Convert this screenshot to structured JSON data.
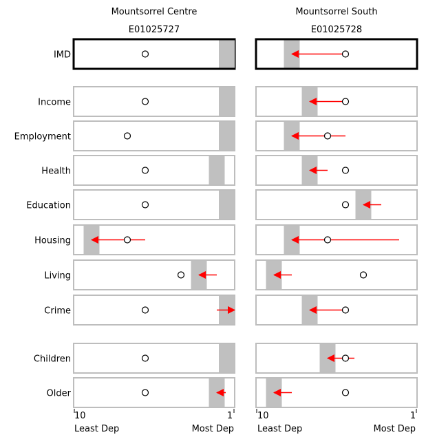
{
  "chart_data": {
    "type": "dot-arrow",
    "panels": [
      {
        "area_name": "Mountsorrel Centre",
        "area_code": "E01025727",
        "values": [
          {
            "category": "IMD",
            "decile": 6,
            "from_decile": 6,
            "highlight_decile": 1
          },
          {
            "category": "Income",
            "decile": 6,
            "from_decile": 6,
            "highlight_decile": 1
          },
          {
            "category": "Employment",
            "decile": 7,
            "from_decile": 7,
            "highlight_decile": 1
          },
          {
            "category": "Health",
            "decile": 6,
            "from_decile": 6,
            "highlight_decile": 2
          },
          {
            "category": "Education",
            "decile": 6,
            "from_decile": 6,
            "highlight_decile": 1
          },
          {
            "category": "Housing",
            "decile": 7,
            "from_decile": 6,
            "to_decile": 9,
            "highlight_decile": 9
          },
          {
            "category": "Living",
            "decile": 4,
            "from_decile": 2,
            "to_decile": 3,
            "highlight_decile": 3
          },
          {
            "category": "Crime",
            "decile": 6,
            "from_decile": 2,
            "to_decile": 1,
            "highlight_decile": 1
          },
          {
            "category": "Children",
            "decile": 6,
            "from_decile": 6,
            "highlight_decile": 1
          },
          {
            "category": "Older",
            "decile": 6,
            "from_decile": 1.5,
            "to_decile": 2,
            "highlight_decile": 2
          }
        ]
      },
      {
        "area_name": "Mountsorrel South",
        "area_code": "E01025728",
        "values": [
          {
            "category": "IMD",
            "decile": 5,
            "from_decile": 5,
            "to_decile": 8,
            "highlight_decile": 8
          },
          {
            "category": "Income",
            "decile": 5,
            "from_decile": 5,
            "to_decile": 7,
            "highlight_decile": 7
          },
          {
            "category": "Employment",
            "decile": 6,
            "from_decile": 5,
            "to_decile": 8,
            "highlight_decile": 8
          },
          {
            "category": "Health",
            "decile": 5,
            "from_decile": 6,
            "to_decile": 7,
            "highlight_decile": 7
          },
          {
            "category": "Education",
            "decile": 5,
            "from_decile": 3,
            "to_decile": 4,
            "highlight_decile": 4
          },
          {
            "category": "Housing",
            "decile": 6,
            "from_decile": 2,
            "to_decile": 8,
            "highlight_decile": 8
          },
          {
            "category": "Living",
            "decile": 4,
            "from_decile": 8,
            "to_decile": 9,
            "highlight_decile": 9
          },
          {
            "category": "Crime",
            "decile": 5,
            "from_decile": 5,
            "to_decile": 7,
            "highlight_decile": 7
          },
          {
            "category": "Children",
            "decile": 5,
            "from_decile": 4.5,
            "to_decile": 6,
            "highlight_decile": 6
          },
          {
            "category": "Older",
            "decile": 5,
            "from_decile": 8,
            "to_decile": 9,
            "highlight_decile": 9
          }
        ]
      }
    ],
    "x_scale": {
      "left_label": "10",
      "right_label": "1",
      "left_caption": "Least Dep",
      "right_caption": "Most Dep",
      "min": 10,
      "max": 1
    },
    "colors": {
      "arrow": "#ff0000",
      "highlight": "#c0c0c0",
      "panel_border": "#bdbdbd",
      "imd_border": "#000000"
    }
  }
}
